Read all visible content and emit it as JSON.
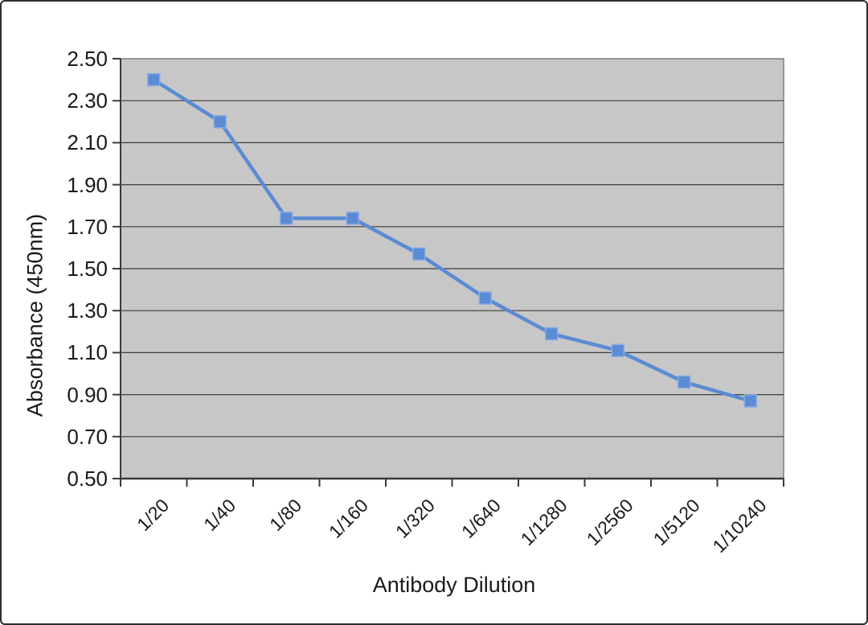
{
  "chart_data": {
    "type": "line",
    "categories": [
      "1/20",
      "1/40",
      "1/80",
      "1/160",
      "1/320",
      "1/640",
      "1/1280",
      "1/2560",
      "1/5120",
      "1/10240"
    ],
    "values": [
      2.4,
      2.2,
      1.74,
      1.74,
      1.57,
      1.36,
      1.19,
      1.11,
      0.96,
      0.87
    ],
    "xlabel": "Antibody Dilution",
    "ylabel": "Absorbance (450nm)",
    "ylim": [
      0.5,
      2.5
    ],
    "ytick_step": 0.2,
    "ytick_labels": [
      "0.50",
      "0.70",
      "0.90",
      "1.10",
      "1.30",
      "1.50",
      "1.70",
      "1.90",
      "2.10",
      "2.30",
      "2.50"
    ],
    "grid": true,
    "legend": "none",
    "marker": "square",
    "colors": {
      "line": "#5B8BD4",
      "marker_fill": "#5B8BD4",
      "marker_edge": "#8AACE2",
      "plot_bg": "#C7C7C7",
      "gridline": "#3d3d3d",
      "axis": "#3a3a3a",
      "plot_border": "#7d7d7d",
      "text": "#1a1a1a",
      "frame_border": "#2e2e2e",
      "page_bg": "#ffffff"
    }
  }
}
